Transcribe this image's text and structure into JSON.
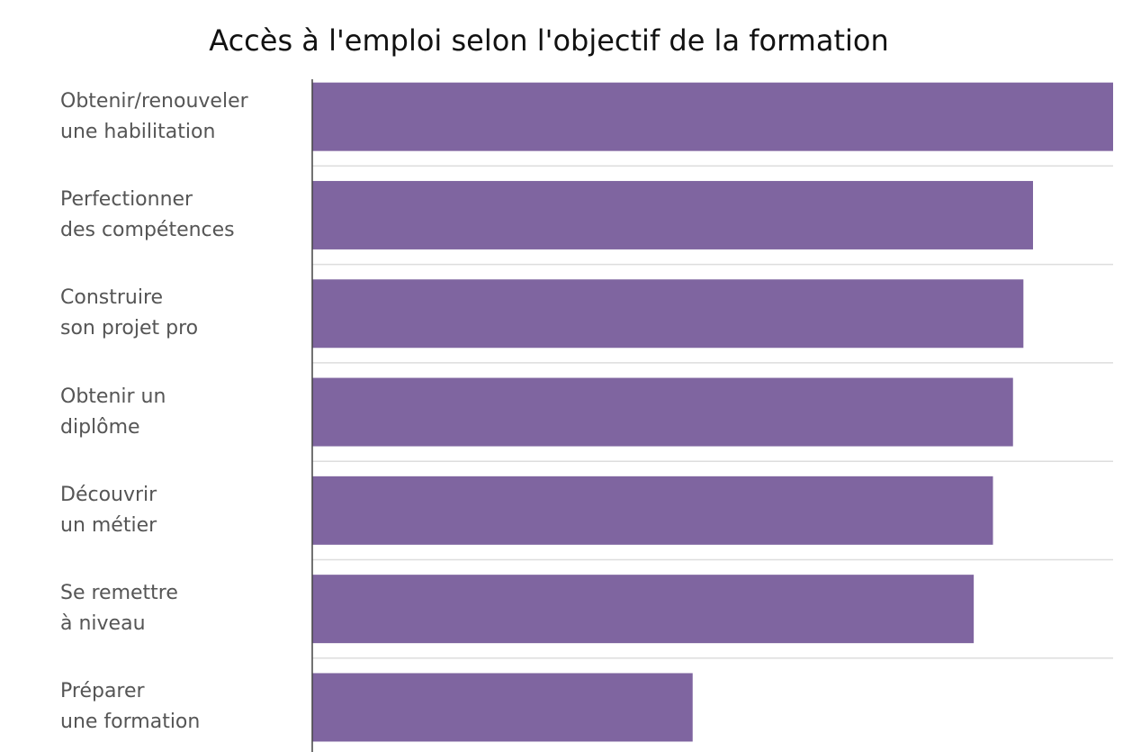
{
  "chart_data": {
    "type": "bar",
    "orientation": "horizontal",
    "title": "Accès à l'emploi selon l'objectif de la formation",
    "categories": [
      "Obtenir/renouveler\nune habilitation",
      "Perfectionner\ndes compétences",
      "Construire\nson projet pro",
      "Obtenir un\ndiplôme",
      "Découvrir\nun métier",
      "Se remettre\nà niveau",
      "Préparer\nune formation"
    ],
    "values": [
      100,
      90,
      88.8,
      87.5,
      85,
      82.6,
      47.5
    ],
    "color": "#7f65a0",
    "xlim": [
      0,
      100
    ]
  }
}
